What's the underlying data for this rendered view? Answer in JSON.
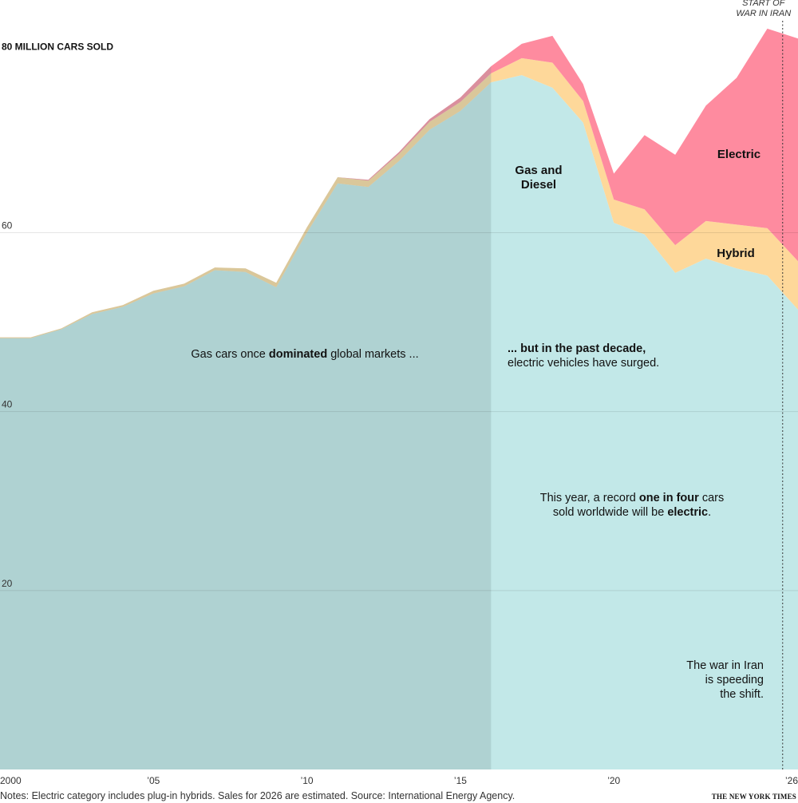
{
  "chart_data": {
    "type": "area",
    "stacked": true,
    "x": [
      2000,
      2001,
      2002,
      2003,
      2004,
      2005,
      2006,
      2007,
      2008,
      2009,
      2010,
      2011,
      2012,
      2013,
      2014,
      2015,
      2016,
      2017,
      2018,
      2019,
      2020,
      2021,
      2022,
      2023,
      2024,
      2025,
      2026
    ],
    "series": [
      {
        "name": "Gas and Diesel",
        "color": "#c2e8e8",
        "values": [
          48.2,
          48.2,
          49.2,
          50.9,
          51.7,
          53.2,
          54.0,
          55.8,
          55.6,
          53.9,
          60.0,
          65.5,
          65.1,
          68.0,
          71.5,
          73.6,
          76.8,
          77.6,
          76.2,
          72.3,
          61.1,
          59.8,
          55.5,
          57.1,
          56.0,
          55.2,
          51.4
        ]
      },
      {
        "name": "Hybrid",
        "color": "#fed89a",
        "values": [
          0.1,
          0.1,
          0.1,
          0.2,
          0.2,
          0.3,
          0.3,
          0.3,
          0.4,
          0.5,
          0.6,
          0.7,
          0.7,
          0.8,
          0.9,
          1.0,
          1.0,
          1.9,
          2.8,
          2.4,
          2.6,
          2.8,
          3.1,
          4.2,
          4.9,
          5.3,
          5.4
        ]
      },
      {
        "name": "Electric",
        "color": "#fe8b9f",
        "values": [
          0,
          0,
          0,
          0,
          0,
          0,
          0,
          0,
          0,
          0,
          0,
          0,
          0.1,
          0.2,
          0.3,
          0.5,
          0.8,
          1.6,
          3.0,
          1.9,
          2.9,
          8.3,
          10.1,
          12.9,
          16.4,
          22.3,
          24.9
        ]
      }
    ],
    "ylim": [
      0,
      86
    ],
    "yticks": [
      20,
      40,
      60
    ],
    "ylabel": "80 MILLION CARS SOLD",
    "ylabel_value": 80,
    "xticks": [
      {
        "x": 2000,
        "label": "2000"
      },
      {
        "x": 2005,
        "label": "’05"
      },
      {
        "x": 2010,
        "label": "’10"
      },
      {
        "x": 2015,
        "label": "’15"
      },
      {
        "x": 2020,
        "label": "’20"
      },
      {
        "x": 2026,
        "label": "’26"
      }
    ],
    "shaded_range": [
      2000,
      2016
    ],
    "event": {
      "x": 2025.5,
      "label_lines": [
        "START OF",
        "WAR IN IRAN"
      ]
    },
    "series_labels": [
      {
        "series": "Gas and Diesel",
        "lines": [
          "Gas and",
          "Diesel"
        ]
      },
      {
        "series": "Hybrid",
        "lines": [
          "Hybrid"
        ]
      },
      {
        "series": "Electric",
        "lines": [
          "Electric"
        ]
      }
    ],
    "annotations": [
      {
        "lines": [
          [
            {
              "t": "Gas cars once "
            },
            {
              "t": "dominated",
              "b": true
            },
            {
              "t": " global markets ..."
            }
          ]
        ]
      },
      {
        "lines": [
          [
            {
              "t": "... but in the past decade,",
              "b": true
            }
          ],
          [
            {
              "t": "electric vehicles have surged."
            }
          ]
        ]
      },
      {
        "lines": [
          [
            {
              "t": "This year, a record "
            },
            {
              "t": "one in four",
              "b": true
            },
            {
              "t": " cars"
            }
          ],
          [
            {
              "t": "sold worldwide will be "
            },
            {
              "t": "electric",
              "b": true
            },
            {
              "t": "."
            }
          ]
        ]
      },
      {
        "lines": [
          [
            {
              "t": "The war in Iran"
            }
          ],
          [
            {
              "t": "is speeding"
            }
          ],
          [
            {
              "t": "the shift."
            }
          ]
        ]
      }
    ],
    "notes": "Notes: Electric category includes plug-in hybrids. Sales for 2026 are estimated. Source: International Energy Agency.",
    "credit": "THE NEW YORK TIMES",
    "colors": {
      "shade": "#7f9a9a",
      "gridline": "#000000",
      "event_line": "#333333"
    }
  }
}
